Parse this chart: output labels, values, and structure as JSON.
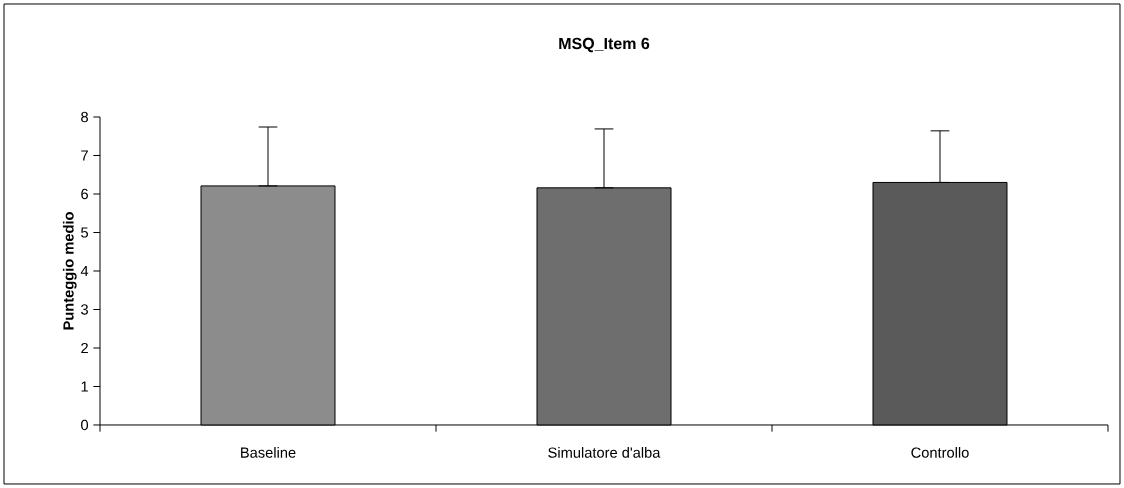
{
  "chart_data": {
    "type": "bar",
    "title": "MSQ_Item 6",
    "ylabel": "Punteggio medio",
    "categories": [
      "Baseline",
      "Simulatore d'alba",
      "Controllo"
    ],
    "values": [
      6.21,
      6.16,
      6.3
    ],
    "errors": [
      [
        6.21,
        7.74
      ],
      [
        6.16,
        7.69
      ],
      [
        6.3,
        7.64
      ]
    ],
    "colors": [
      "#8c8c8c",
      "#6e6e6e",
      "#5a5a5a"
    ],
    "ylim": [
      0,
      8
    ],
    "yticks": [
      0,
      1,
      2,
      3,
      4,
      5,
      6,
      7,
      8
    ]
  }
}
